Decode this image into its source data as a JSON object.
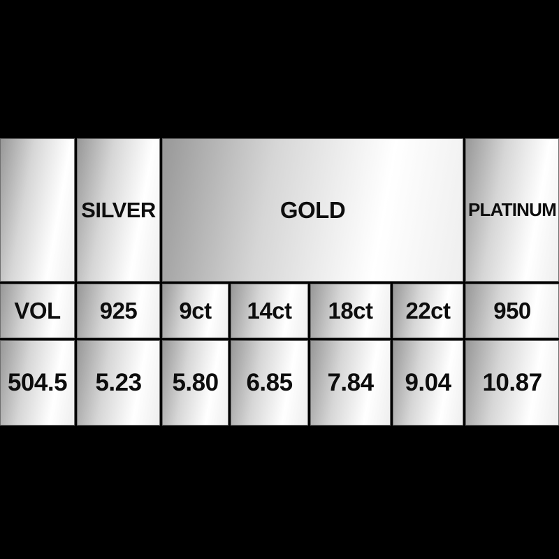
{
  "page": {
    "background_color": "#000000",
    "text_color": "#0d0d0d",
    "cell_gradient": [
      "#989898",
      "#ffffff",
      "#eeeeee"
    ]
  },
  "table": {
    "header_groups": [
      {
        "label": "",
        "span": 1
      },
      {
        "label": "SILVER",
        "span": 1
      },
      {
        "label": "GOLD",
        "span": 4
      },
      {
        "label": "PLATINUM",
        "span": 1
      }
    ],
    "columns": [
      "VOL",
      "925",
      "9ct",
      "14ct",
      "18ct",
      "22ct",
      "950"
    ],
    "values": [
      "504.5",
      "5.23",
      "5.80",
      "6.85",
      "7.84",
      "9.04",
      "10.87"
    ]
  },
  "chart_data": {
    "type": "table",
    "title": "",
    "header_row_1": [
      "",
      "SILVER",
      "GOLD",
      "GOLD",
      "GOLD",
      "GOLD",
      "PLATINUM"
    ],
    "header_row_2": [
      "VOL",
      "925",
      "9ct",
      "14ct",
      "18ct",
      "22ct",
      "950"
    ],
    "data_rows": [
      [
        504.5,
        5.23,
        5.8,
        6.85,
        7.84,
        9.04,
        10.87
      ]
    ],
    "column_groups": [
      {
        "group": "",
        "columns": [
          "VOL"
        ],
        "values": [
          504.5
        ]
      },
      {
        "group": "SILVER",
        "columns": [
          "925"
        ],
        "values": [
          5.23
        ]
      },
      {
        "group": "GOLD",
        "columns": [
          "9ct",
          "14ct",
          "18ct",
          "22ct"
        ],
        "values": [
          5.8,
          6.85,
          7.84,
          9.04
        ]
      },
      {
        "group": "PLATINUM",
        "columns": [
          "950"
        ],
        "values": [
          10.87
        ]
      }
    ],
    "layout": {
      "grid": "on",
      "background": "black",
      "cell_style": "metallic-gradient"
    }
  }
}
